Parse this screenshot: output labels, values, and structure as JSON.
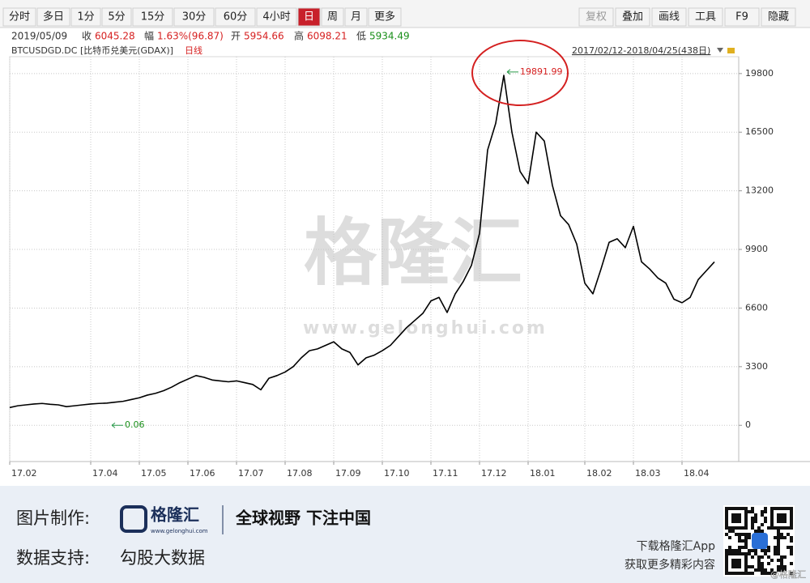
{
  "toolbar": {
    "periods": [
      "分时",
      "多日",
      "1分",
      "5分",
      "15分",
      "30分",
      "60分",
      "4小时",
      "日",
      "周",
      "月",
      "更多"
    ],
    "tools": [
      "复权",
      "叠加",
      "画线",
      "工具",
      "F9",
      "隐藏"
    ]
  },
  "quote": {
    "date": "2019/05/09",
    "close_label": "收",
    "close": 6045.28,
    "change_label": "幅",
    "change": "1.63%(96.87)",
    "open_label": "开",
    "open": 5954.66,
    "high_label": "高",
    "high": 6098.21,
    "low_label": "低",
    "low": 5934.49
  },
  "instrument": {
    "name": "BTCUSDGD.DC [比特币兑美元(GDAX)]",
    "period": "日线",
    "range": "2017/02/12-2018/04/25(438日)"
  },
  "watermark": {
    "text": "格隆汇",
    "url": "www.gelonghui.com"
  },
  "chart_data": {
    "type": "line",
    "categories": [
      "17.02",
      null,
      null,
      null,
      null,
      null,
      null,
      null,
      null,
      null,
      "17.04",
      null,
      null,
      null,
      null,
      null,
      "17.05",
      null,
      null,
      null,
      null,
      null,
      "17.06",
      null,
      null,
      null,
      null,
      null,
      "17.07",
      null,
      null,
      null,
      null,
      null,
      "17.08",
      null,
      null,
      null,
      null,
      null,
      "17.09",
      null,
      null,
      null,
      null,
      null,
      "17.10",
      null,
      null,
      null,
      null,
      null,
      "17.11",
      null,
      null,
      null,
      null,
      null,
      "17.12",
      null,
      null,
      null,
      null,
      null,
      "18.01",
      null,
      null,
      null,
      null,
      null,
      null,
      "18.02",
      null,
      null,
      null,
      null,
      null,
      "18.03",
      null,
      null,
      null,
      null,
      null,
      "18.04",
      null,
      null,
      null,
      null
    ],
    "series": [
      {
        "color": "#000000",
        "values": [
          1000,
          1100,
          1150,
          1200,
          1230,
          1180,
          1150,
          1050,
          1100,
          1150,
          1200,
          1230,
          1250,
          1300,
          1350,
          1450,
          1550,
          1700,
          1800,
          1950,
          2150,
          2400,
          2600,
          2800,
          2700,
          2550,
          2500,
          2450,
          2500,
          2400,
          2300,
          2000,
          2650,
          2800,
          3000,
          3300,
          3800,
          4200,
          4300,
          4500,
          4700,
          4300,
          4100,
          3400,
          3800,
          3950,
          4200,
          4500,
          5000,
          5500,
          5900,
          6300,
          7000,
          7200,
          6350,
          7400,
          8100,
          9000,
          10800,
          15500,
          17000,
          19700,
          16500,
          14300,
          13600,
          16500,
          16000,
          13500,
          11800,
          11300,
          10200,
          8000,
          7400,
          8800,
          10300,
          10500,
          10000,
          11200,
          9200,
          8800,
          8300,
          8000,
          7100,
          6900,
          7200,
          8200,
          8700,
          9200
        ]
      }
    ],
    "ylim": [
      -2040,
      20750
    ],
    "yticks": [
      0,
      3300,
      6600,
      9900,
      13200,
      16500,
      19800
    ],
    "grid": true,
    "high_label": 19891.99,
    "low_label": 0.06
  },
  "footer": {
    "made_by_label": "图片制作:",
    "brand": "格隆汇",
    "brand_url": "www.gelonghui.com",
    "slogan": "全球视野 下注中国",
    "data_label": "数据支持:",
    "data_source": "勾股大数据",
    "app_line1": "下载格隆汇App",
    "app_line2": "获取更多精彩内容",
    "credit": "@格隆汇"
  }
}
